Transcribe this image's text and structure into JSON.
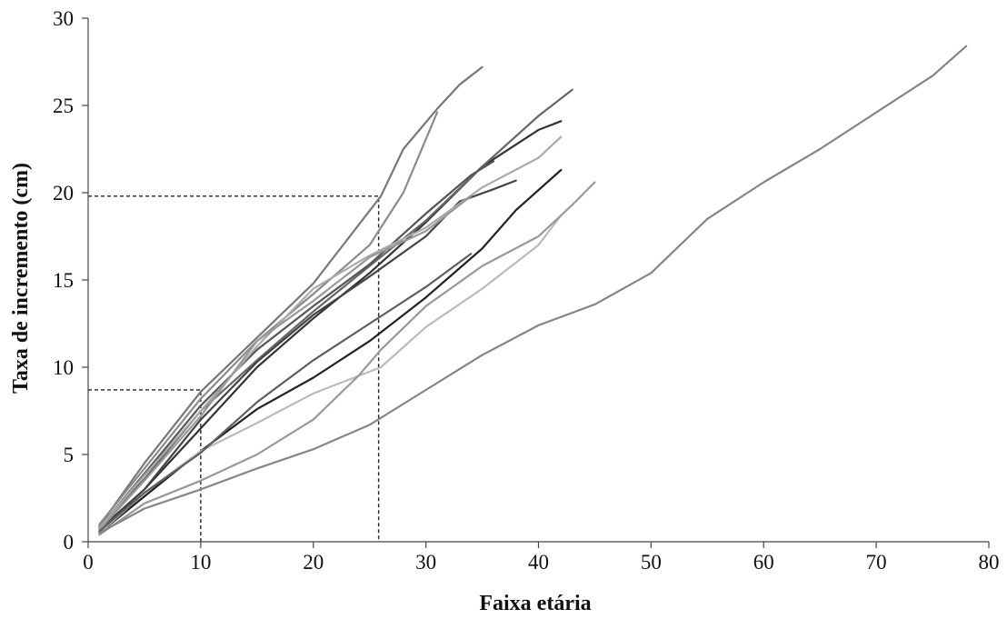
{
  "chart_data": {
    "type": "line",
    "title": "",
    "xlabel": "Faixa etária",
    "ylabel": "Taxa de incremento (cm)",
    "xlim": [
      0,
      80
    ],
    "ylim": [
      0,
      30
    ],
    "x_ticks": [
      0,
      10,
      20,
      30,
      40,
      50,
      60,
      70,
      80
    ],
    "y_ticks": [
      0,
      5,
      10,
      15,
      20,
      25,
      30
    ],
    "x_tick_labels": [
      "0",
      "10",
      "20",
      "30",
      "40",
      "50",
      "60",
      "70",
      "80"
    ],
    "y_tick_labels": [
      "0",
      "5",
      "10",
      "15",
      "20",
      "25",
      "30"
    ],
    "grid": false,
    "legend": "none",
    "series": [
      {
        "color": "#777777",
        "points": [
          [
            1,
            0.9
          ],
          [
            5,
            4.5
          ],
          [
            10,
            8.6
          ],
          [
            15,
            11.7
          ],
          [
            20,
            14.8
          ],
          [
            26,
            19.8
          ],
          [
            28,
            22.5
          ],
          [
            31,
            24.8
          ],
          [
            33,
            26.2
          ],
          [
            35,
            27.2
          ]
        ]
      },
      {
        "color": "#8a8a8a",
        "points": [
          [
            1,
            1.0
          ],
          [
            5,
            4.2
          ],
          [
            10,
            8.2
          ],
          [
            15,
            11.5
          ],
          [
            20,
            14.2
          ],
          [
            25,
            17.0
          ],
          [
            28,
            20.0
          ],
          [
            31,
            24.6
          ]
        ]
      },
      {
        "color": "#333333",
        "points": [
          [
            1,
            0.7
          ],
          [
            5,
            3.0
          ],
          [
            10,
            6.5
          ],
          [
            15,
            10.0
          ],
          [
            20,
            12.8
          ],
          [
            25,
            15.4
          ],
          [
            30,
            18.3
          ],
          [
            35,
            21.5
          ],
          [
            40,
            23.6
          ],
          [
            42,
            24.1
          ]
        ]
      },
      {
        "color": "#666666",
        "points": [
          [
            1,
            0.8
          ],
          [
            5,
            3.6
          ],
          [
            10,
            7.5
          ],
          [
            15,
            10.4
          ],
          [
            20,
            13.2
          ],
          [
            25,
            15.8
          ],
          [
            30,
            18.4
          ],
          [
            35,
            21.5
          ],
          [
            40,
            24.4
          ],
          [
            43,
            25.9
          ]
        ]
      },
      {
        "color": "#555555",
        "points": [
          [
            1,
            0.8
          ],
          [
            5,
            3.9
          ],
          [
            10,
            7.8
          ],
          [
            15,
            11.0
          ],
          [
            20,
            13.5
          ],
          [
            25,
            15.9
          ],
          [
            30,
            18.8
          ],
          [
            34,
            21.0
          ],
          [
            36,
            21.8
          ]
        ]
      },
      {
        "color": "#444444",
        "points": [
          [
            1,
            0.6
          ],
          [
            5,
            3.0
          ],
          [
            10,
            7.0
          ],
          [
            15,
            10.3
          ],
          [
            20,
            13.0
          ],
          [
            25,
            15.2
          ],
          [
            30,
            17.5
          ],
          [
            33,
            19.5
          ],
          [
            36,
            20.2
          ],
          [
            38,
            20.7
          ]
        ]
      },
      {
        "color": "#aaaaaa",
        "points": [
          [
            1,
            0.8
          ],
          [
            5,
            3.8
          ],
          [
            10,
            7.5
          ],
          [
            15,
            11.2
          ],
          [
            20,
            14.5
          ],
          [
            25,
            16.4
          ],
          [
            30,
            18.0
          ],
          [
            35,
            20.3
          ],
          [
            40,
            22.0
          ],
          [
            42,
            23.2
          ]
        ]
      },
      {
        "color": "#999999",
        "points": [
          [
            1,
            0.7
          ],
          [
            5,
            3.5
          ],
          [
            10,
            7.2
          ],
          [
            15,
            11.5
          ],
          [
            20,
            13.8
          ],
          [
            25,
            16.3
          ],
          [
            30,
            17.8
          ],
          [
            34,
            19.8
          ]
        ]
      },
      {
        "color": "#222222",
        "points": [
          [
            1,
            0.5
          ],
          [
            5,
            2.6
          ],
          [
            10,
            5.2
          ],
          [
            15,
            7.6
          ],
          [
            20,
            9.4
          ],
          [
            25,
            11.5
          ],
          [
            30,
            14.0
          ],
          [
            35,
            16.8
          ],
          [
            38,
            19.0
          ],
          [
            42,
            21.3
          ]
        ]
      },
      {
        "color": "#bbbbbb",
        "points": [
          [
            1,
            0.5
          ],
          [
            5,
            2.8
          ],
          [
            10,
            5.2
          ],
          [
            15,
            6.8
          ],
          [
            20,
            8.5
          ],
          [
            26,
            10.0
          ],
          [
            30,
            12.3
          ],
          [
            35,
            14.5
          ],
          [
            40,
            17.0
          ],
          [
            42,
            18.7
          ]
        ]
      },
      {
        "color": "#999999",
        "points": [
          [
            1,
            0.4
          ],
          [
            5,
            2.2
          ],
          [
            10,
            3.5
          ],
          [
            15,
            5.0
          ],
          [
            20,
            7.0
          ],
          [
            24,
            9.5
          ],
          [
            26,
            11.0
          ],
          [
            30,
            13.5
          ],
          [
            35,
            15.8
          ],
          [
            40,
            17.5
          ],
          [
            43,
            19.3
          ],
          [
            45,
            20.6
          ]
        ]
      },
      {
        "color": "#5e5e5e",
        "points": [
          [
            1,
            0.6
          ],
          [
            5,
            2.8
          ],
          [
            10,
            5.1
          ],
          [
            15,
            8.0
          ],
          [
            20,
            10.4
          ],
          [
            25,
            12.5
          ],
          [
            30,
            14.6
          ],
          [
            34,
            16.5
          ]
        ]
      },
      {
        "color": "#858585",
        "points": [
          [
            1,
            0.5
          ],
          [
            5,
            1.9
          ],
          [
            10,
            3.0
          ],
          [
            15,
            4.2
          ],
          [
            20,
            5.3
          ],
          [
            25,
            6.7
          ],
          [
            30,
            8.7
          ],
          [
            35,
            10.7
          ],
          [
            40,
            12.4
          ],
          [
            45,
            13.6
          ],
          [
            50,
            15.4
          ],
          [
            55,
            18.5
          ],
          [
            60,
            20.6
          ],
          [
            65,
            22.5
          ],
          [
            70,
            24.6
          ],
          [
            75,
            26.7
          ],
          [
            78,
            28.4
          ]
        ]
      }
    ],
    "reference_lines": [
      {
        "x": 10,
        "y": 8.7
      },
      {
        "x": 25.8,
        "y": 19.8
      }
    ]
  }
}
